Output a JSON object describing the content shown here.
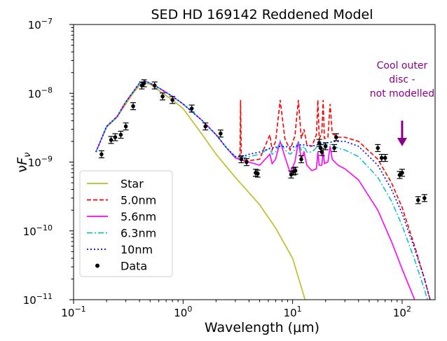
{
  "chart_data": {
    "type": "line",
    "title": "SED HD 169142 Reddened Model",
    "xlabel": "Wavelength (μm)",
    "ylabel": "νF_ν",
    "xscale": "log",
    "yscale": "log",
    "xlim": [
      0.1,
      200
    ],
    "ylim": [
      1e-11,
      1e-07
    ],
    "x_ticks": [
      {
        "value": 0.1,
        "base": "10",
        "exp": "−1"
      },
      {
        "value": 1,
        "base": "10",
        "exp": "0"
      },
      {
        "value": 10,
        "base": "10",
        "exp": "1"
      },
      {
        "value": 100,
        "base": "10",
        "exp": "2"
      }
    ],
    "y_ticks": [
      {
        "value": 1e-11,
        "base": "10",
        "exp": "−11"
      },
      {
        "value": 1e-10,
        "base": "10",
        "exp": "−10"
      },
      {
        "value": 1e-09,
        "base": "10",
        "exp": "−9"
      },
      {
        "value": 1e-08,
        "base": "10",
        "exp": "−8"
      },
      {
        "value": 1e-07,
        "base": "10",
        "exp": "−7"
      }
    ],
    "legend_position": "lower-left",
    "series": [
      {
        "name": "Star",
        "color": "#bcbd22",
        "dash": "solid",
        "points": [
          [
            0.16,
            1.4e-09
          ],
          [
            0.2,
            3.2e-09
          ],
          [
            0.25,
            4.5e-09
          ],
          [
            0.3,
            7e-09
          ],
          [
            0.35,
            1e-08
          ],
          [
            0.4,
            1.3e-08
          ],
          [
            0.45,
            1.4e-08
          ],
          [
            0.5,
            1.35e-08
          ],
          [
            0.6,
            1.1e-08
          ],
          [
            0.8,
            8e-09
          ],
          [
            1.0,
            6e-09
          ],
          [
            1.5,
            2.5e-09
          ],
          [
            2.0,
            1.3e-09
          ],
          [
            3.0,
            6e-10
          ],
          [
            5.0,
            2.4e-10
          ],
          [
            7.0,
            1.1e-10
          ],
          [
            10.0,
            4e-11
          ],
          [
            13.0,
            1e-11
          ]
        ]
      },
      {
        "name": "5.0nm",
        "color": "#ff0000",
        "dash": "6,3",
        "points": [
          [
            0.16,
            1.4e-09
          ],
          [
            0.2,
            3.3e-09
          ],
          [
            0.25,
            4.6e-09
          ],
          [
            0.3,
            7.5e-09
          ],
          [
            0.35,
            1.05e-08
          ],
          [
            0.4,
            1.4e-08
          ],
          [
            0.45,
            1.5e-08
          ],
          [
            0.5,
            1.4e-08
          ],
          [
            0.6,
            1.2e-08
          ],
          [
            0.8,
            9e-09
          ],
          [
            1.0,
            7e-09
          ],
          [
            1.5,
            4e-09
          ],
          [
            2.0,
            2.5e-09
          ],
          [
            2.5,
            1.6e-09
          ],
          [
            3.0,
            1.15e-09
          ],
          [
            3.3,
            1.1e-09
          ],
          [
            3.35,
            8e-09
          ],
          [
            3.4,
            1.1e-09
          ],
          [
            4.0,
            1.05e-09
          ],
          [
            5.0,
            1.1e-09
          ],
          [
            6.2,
            2.5e-09
          ],
          [
            6.5,
            1.5e-09
          ],
          [
            7.0,
            2e-09
          ],
          [
            7.7,
            8e-09
          ],
          [
            8.5,
            2.2e-09
          ],
          [
            9.5,
            1.5e-09
          ],
          [
            10.5,
            2.4e-09
          ],
          [
            11.3,
            8e-09
          ],
          [
            12.0,
            2.2e-09
          ],
          [
            12.7,
            3e-09
          ],
          [
            13.5,
            1.8e-09
          ],
          [
            15.0,
            1.7e-09
          ],
          [
            16.5,
            2.5e-09
          ],
          [
            17.0,
            8e-09
          ],
          [
            17.5,
            2.2e-09
          ],
          [
            18.5,
            2.6e-09
          ],
          [
            19.0,
            8e-09
          ],
          [
            19.5,
            2.2e-09
          ],
          [
            21.0,
            2.3e-09
          ],
          [
            22.0,
            7e-09
          ],
          [
            23.0,
            2.6e-09
          ],
          [
            26.0,
            2.3e-09
          ],
          [
            30.0,
            2.3e-09
          ],
          [
            40.0,
            2e-09
          ],
          [
            60.0,
            1.1e-09
          ],
          [
            80.0,
            5e-10
          ],
          [
            100.0,
            2.2e-10
          ],
          [
            130.0,
            6e-11
          ],
          [
            160.0,
            2e-11
          ],
          [
            180.0,
            1e-11
          ]
        ]
      },
      {
        "name": "5.6nm",
        "color": "#ff00ff",
        "dash": "solid",
        "points": [
          [
            0.16,
            1.4e-09
          ],
          [
            0.2,
            3.3e-09
          ],
          [
            0.25,
            4.6e-09
          ],
          [
            0.3,
            7.5e-09
          ],
          [
            0.35,
            1.05e-08
          ],
          [
            0.4,
            1.4e-08
          ],
          [
            0.45,
            1.5e-08
          ],
          [
            0.5,
            1.4e-08
          ],
          [
            0.6,
            1.2e-08
          ],
          [
            0.8,
            9e-09
          ],
          [
            1.0,
            7e-09
          ],
          [
            1.5,
            4e-09
          ],
          [
            2.0,
            2.5e-09
          ],
          [
            2.5,
            1.6e-09
          ],
          [
            3.0,
            1.15e-09
          ],
          [
            3.5,
            1.05e-09
          ],
          [
            4.0,
            1e-09
          ],
          [
            5.0,
            9e-10
          ],
          [
            6.2,
            1.3e-09
          ],
          [
            6.5,
            9.5e-10
          ],
          [
            7.0,
            1.1e-09
          ],
          [
            7.7,
            2e-09
          ],
          [
            8.5,
            1.2e-09
          ],
          [
            9.5,
            7e-10
          ],
          [
            10.5,
            1e-09
          ],
          [
            11.3,
            2e-09
          ],
          [
            12.0,
            1.1e-09
          ],
          [
            12.7,
            1.4e-09
          ],
          [
            13.5,
            9e-10
          ],
          [
            15.0,
            7.5e-10
          ],
          [
            16.5,
            8e-10
          ],
          [
            17.0,
            1.4e-09
          ],
          [
            17.5,
            9e-10
          ],
          [
            18.5,
            9e-10
          ],
          [
            19.0,
            1.5e-09
          ],
          [
            19.5,
            9.5e-10
          ],
          [
            21.0,
            1e-09
          ],
          [
            22.0,
            1.7e-09
          ],
          [
            23.0,
            1.1e-09
          ],
          [
            26.0,
            9e-10
          ],
          [
            30.0,
            8e-10
          ],
          [
            40.0,
            5.5e-10
          ],
          [
            60.0,
            2e-10
          ],
          [
            80.0,
            7e-11
          ],
          [
            100.0,
            2.8e-11
          ],
          [
            130.0,
            1e-11
          ]
        ]
      },
      {
        "name": "6.3nm",
        "color": "#17becf",
        "dash": "8,3,2,3",
        "points": [
          [
            0.16,
            1.4e-09
          ],
          [
            0.2,
            3.3e-09
          ],
          [
            0.25,
            4.6e-09
          ],
          [
            0.3,
            7.5e-09
          ],
          [
            0.35,
            1.05e-08
          ],
          [
            0.4,
            1.4e-08
          ],
          [
            0.45,
            1.5e-08
          ],
          [
            0.5,
            1.4e-08
          ],
          [
            0.6,
            1.2e-08
          ],
          [
            0.8,
            9e-09
          ],
          [
            1.0,
            7e-09
          ],
          [
            1.5,
            4e-09
          ],
          [
            2.0,
            2.5e-09
          ],
          [
            2.5,
            1.6e-09
          ],
          [
            3.0,
            1.2e-09
          ],
          [
            3.5,
            1.15e-09
          ],
          [
            4.0,
            1.2e-09
          ],
          [
            5.0,
            1.3e-09
          ],
          [
            6.2,
            1.6e-09
          ],
          [
            6.5,
            1.3e-09
          ],
          [
            7.0,
            1.4e-09
          ],
          [
            7.7,
            2e-09
          ],
          [
            8.5,
            1.5e-09
          ],
          [
            9.5,
            1.3e-09
          ],
          [
            10.5,
            1.5e-09
          ],
          [
            11.3,
            2e-09
          ],
          [
            12.0,
            1.5e-09
          ],
          [
            12.7,
            1.7e-09
          ],
          [
            13.5,
            1.4e-09
          ],
          [
            15.0,
            1.4e-09
          ],
          [
            17.0,
            1.7e-09
          ],
          [
            19.0,
            1.8e-09
          ],
          [
            22.0,
            1.8e-09
          ],
          [
            26.0,
            1.6e-09
          ],
          [
            30.0,
            1.5e-09
          ],
          [
            40.0,
            1.2e-09
          ],
          [
            60.0,
            6e-10
          ],
          [
            80.0,
            2.7e-10
          ],
          [
            100.0,
            1.2e-10
          ],
          [
            130.0,
            3.8e-11
          ],
          [
            160.0,
            1.4e-11
          ],
          [
            170.0,
            1e-11
          ]
        ]
      },
      {
        "name": "10nm",
        "color": "#0000ff",
        "dash": "2,3",
        "points": [
          [
            0.16,
            1.4e-09
          ],
          [
            0.2,
            3.3e-09
          ],
          [
            0.25,
            4.6e-09
          ],
          [
            0.3,
            7.5e-09
          ],
          [
            0.35,
            1.05e-08
          ],
          [
            0.4,
            1.4e-08
          ],
          [
            0.45,
            1.5e-08
          ],
          [
            0.5,
            1.4e-08
          ],
          [
            0.6,
            1.2e-08
          ],
          [
            0.8,
            9e-09
          ],
          [
            1.0,
            7e-09
          ],
          [
            1.5,
            4e-09
          ],
          [
            2.0,
            2.5e-09
          ],
          [
            2.5,
            1.6e-09
          ],
          [
            3.0,
            1.2e-09
          ],
          [
            3.5,
            1.2e-09
          ],
          [
            4.0,
            1.3e-09
          ],
          [
            5.0,
            1.4e-09
          ],
          [
            6.0,
            1.55e-09
          ],
          [
            7.7,
            1.7e-09
          ],
          [
            10.0,
            1.65e-09
          ],
          [
            12.0,
            1.8e-09
          ],
          [
            15.0,
            1.7e-09
          ],
          [
            17.0,
            1.8e-09
          ],
          [
            20.0,
            1.9e-09
          ],
          [
            25.0,
            2e-09
          ],
          [
            30.0,
            2e-09
          ],
          [
            40.0,
            1.7e-09
          ],
          [
            60.0,
            9e-10
          ],
          [
            80.0,
            4e-10
          ],
          [
            100.0,
            1.8e-10
          ],
          [
            130.0,
            5.5e-11
          ],
          [
            160.0,
            2e-11
          ],
          [
            180.0,
            1e-11
          ]
        ]
      }
    ],
    "data_points": {
      "name": "Data",
      "color": "#000000",
      "points": [
        {
          "x": 0.18,
          "y": 1.3e-09
        },
        {
          "x": 0.22,
          "y": 2.1e-09
        },
        {
          "x": 0.24,
          "y": 2.3e-09
        },
        {
          "x": 0.27,
          "y": 2.5e-09
        },
        {
          "x": 0.3,
          "y": 3.3e-09
        },
        {
          "x": 0.35,
          "y": 6.5e-09
        },
        {
          "x": 0.42,
          "y": 1.3e-08
        },
        {
          "x": 0.44,
          "y": 1.4e-08
        },
        {
          "x": 0.55,
          "y": 1.3e-08
        },
        {
          "x": 0.65,
          "y": 9e-09
        },
        {
          "x": 0.8,
          "y": 8e-09
        },
        {
          "x": 1.2,
          "y": 6e-09
        },
        {
          "x": 1.6,
          "y": 3.3e-09
        },
        {
          "x": 2.2,
          "y": 2.6e-09
        },
        {
          "x": 3.4,
          "y": 1.1e-09
        },
        {
          "x": 3.8,
          "y": 1e-09
        },
        {
          "x": 4.6,
          "y": 7e-10
        },
        {
          "x": 4.8,
          "y": 6.8e-10
        },
        {
          "x": 9.7,
          "y": 6.6e-10
        },
        {
          "x": 10.2,
          "y": 7.3e-10
        },
        {
          "x": 10.6,
          "y": 7.5e-10
        },
        {
          "x": 12.0,
          "y": 1.1e-09
        },
        {
          "x": 17.5,
          "y": 1.9e-09
        },
        {
          "x": 18.0,
          "y": 1.6e-09
        },
        {
          "x": 18.5,
          "y": 1.4e-09
        },
        {
          "x": 20.0,
          "y": 1.7e-09
        },
        {
          "x": 24.0,
          "y": 1.6e-09
        },
        {
          "x": 25.0,
          "y": 2.3e-09
        },
        {
          "x": 60.0,
          "y": 1.6e-09
        },
        {
          "x": 65.0,
          "y": 1.15e-09
        },
        {
          "x": 70.0,
          "y": 1.15e-09
        },
        {
          "x": 95.0,
          "y": 6.5e-10
        },
        {
          "x": 100.0,
          "y": 7e-10
        },
        {
          "x": 140.0,
          "y": 2.8e-10
        },
        {
          "x": 160.0,
          "y": 3e-10
        }
      ]
    },
    "annotation": {
      "lines": [
        "Cool outer",
        "disc -",
        "not modelled"
      ],
      "color": "#8b008b",
      "arrow_x": 100,
      "arrow_y_from": 4e-09,
      "arrow_y_to": 1.7e-09
    }
  }
}
